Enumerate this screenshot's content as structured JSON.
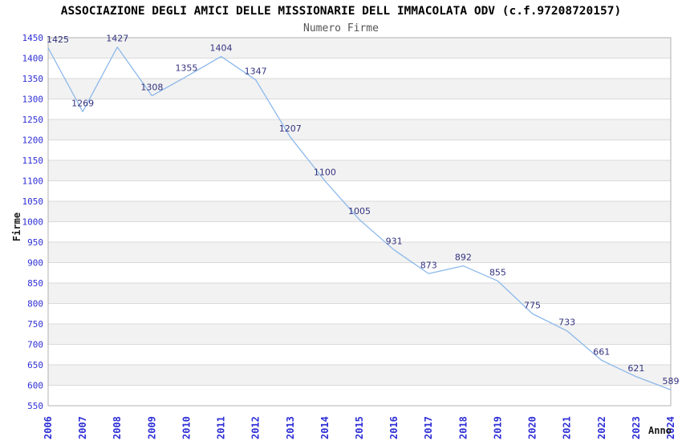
{
  "chart_data": {
    "type": "line",
    "title": "ASSOCIAZIONE DEGLI AMICI DELLE MISSIONARIE DELL IMMACOLATA ODV (c.f.97208720157)",
    "subtitle": "Numero Firme",
    "xlabel": "Anno",
    "ylabel": "Firme",
    "x": [
      2006,
      2007,
      2008,
      2009,
      2010,
      2011,
      2012,
      2013,
      2014,
      2015,
      2016,
      2017,
      2018,
      2019,
      2020,
      2021,
      2022,
      2023,
      2024
    ],
    "values": [
      1425,
      1269,
      1427,
      1308,
      1355,
      1404,
      1347,
      1207,
      1100,
      1005,
      931,
      873,
      892,
      855,
      775,
      733,
      661,
      621,
      589
    ],
    "ylim": [
      550,
      1450
    ],
    "ytick_step": 50,
    "grid": true,
    "legend": "none",
    "colors": {
      "line": "#8cb8ea",
      "tick_label": "#2e2ed6",
      "data_label": "#333380",
      "axis_title": "#1a1a1a",
      "band_dark": "#f2f2f2",
      "band_light": "#ffffff",
      "gridline": "#dadada",
      "border": "#b0b0b0",
      "title": "#000000",
      "subtitle": "#555555"
    }
  }
}
